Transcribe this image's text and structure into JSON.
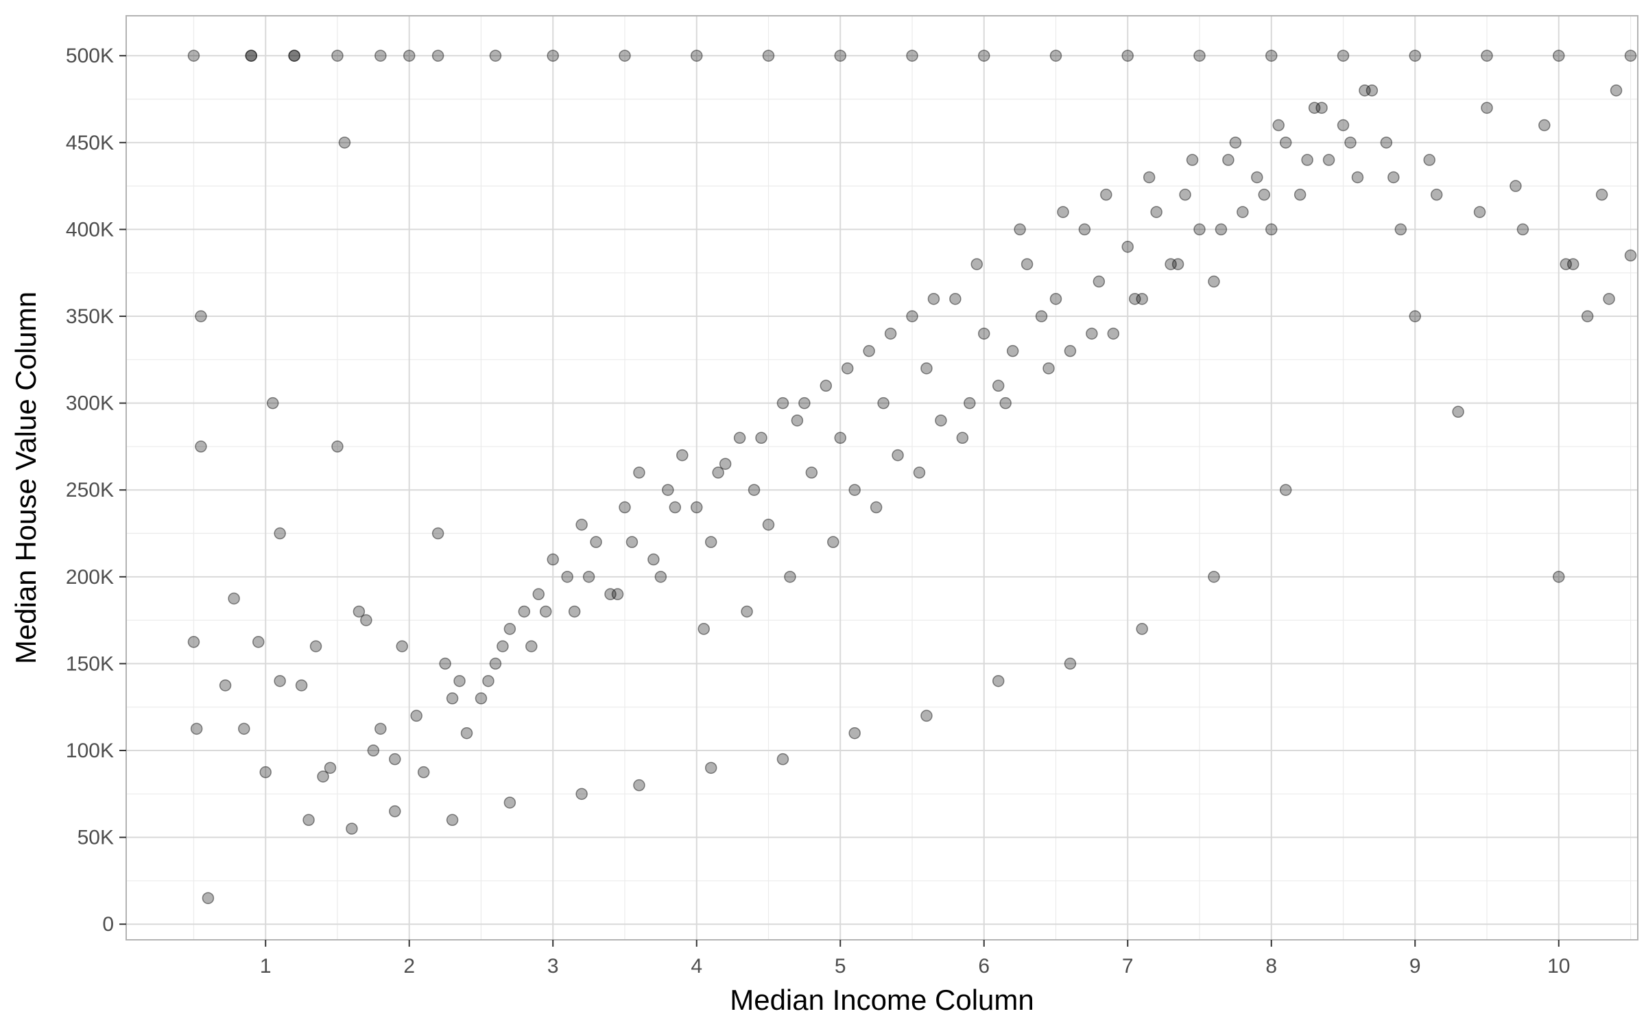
{
  "chart_data": {
    "type": "scatter",
    "title": "",
    "xlabel": "Median Income Column",
    "ylabel": "Median House Value Column",
    "xlim": [
      0.03,
      10.55
    ],
    "ylim": [
      -9000,
      523000
    ],
    "x_ticks": [
      1,
      2,
      3,
      4,
      5,
      6,
      7,
      8,
      9,
      10
    ],
    "x_tick_labels": [
      "1",
      "2",
      "3",
      "4",
      "5",
      "6",
      "7",
      "8",
      "9",
      "10"
    ],
    "y_ticks": [
      0,
      50000,
      100000,
      150000,
      200000,
      250000,
      300000,
      350000,
      400000,
      450000,
      500000
    ],
    "y_tick_labels": [
      "0",
      "50K",
      "100K",
      "150K",
      "200K",
      "250K",
      "300K",
      "350K",
      "400K",
      "450K",
      "500K"
    ],
    "grid": true,
    "legend": "none",
    "point_color": "#000000",
    "point_opacity": 0.3,
    "series": [
      {
        "x": [
          0.5,
          0.52,
          0.55,
          0.55,
          0.6,
          0.72,
          0.78,
          0.85,
          0.9,
          0.95,
          1.0,
          1.05,
          1.1,
          1.2,
          1.25,
          1.4,
          1.5,
          1.55,
          1.7,
          1.8,
          1.9,
          2.0,
          2.1,
          2.2,
          2.3,
          2.4,
          2.5,
          2.6,
          2.7,
          2.8,
          2.9,
          3.0,
          3.1,
          3.2,
          3.3,
          3.4,
          3.5,
          3.6,
          3.7,
          3.8,
          3.9,
          4.0,
          4.1,
          4.2,
          4.3,
          4.4,
          4.5,
          4.6,
          4.7,
          4.8,
          4.9,
          5.0,
          5.1,
          5.2,
          5.3,
          5.4,
          5.5,
          5.6,
          5.7,
          5.8,
          5.9,
          6.0,
          6.1,
          6.2,
          6.3,
          6.4,
          6.5,
          6.6,
          6.7,
          6.8,
          6.9,
          7.0,
          7.1,
          7.2,
          7.3,
          7.4,
          7.5,
          7.6,
          7.7,
          7.8,
          7.9,
          8.0,
          8.1,
          8.2,
          8.3,
          8.4,
          8.5,
          8.6,
          8.7,
          8.8,
          8.9,
          9.0,
          9.1,
          9.3,
          9.5,
          9.7,
          9.9,
          10.0,
          10.1,
          10.2,
          10.3,
          10.4,
          10.5,
          0.5,
          0.9,
          1.2,
          1.5,
          1.8,
          2.2,
          2.6,
          3.0,
          3.5,
          4.0,
          4.5,
          5.0,
          5.5,
          6.0,
          6.5,
          7.0,
          7.5,
          8.0,
          8.5,
          9.0,
          9.5,
          10.0,
          10.5,
          1.3,
          1.6,
          1.9,
          2.3,
          2.7,
          3.2,
          3.6,
          4.1,
          4.6,
          5.1,
          5.6,
          6.1,
          6.6,
          7.1,
          7.6,
          8.1,
          1.45,
          1.75,
          2.05,
          2.35,
          2.65,
          2.95,
          3.25,
          3.55,
          3.85,
          4.15,
          4.45,
          4.75,
          5.05,
          5.35,
          5.65,
          5.95,
          6.25,
          6.55,
          6.85,
          7.15,
          7.45,
          7.75,
          8.05,
          8.35,
          8.65,
          1.1,
          1.35,
          1.65,
          1.95,
          2.25,
          2.55,
          2.85,
          3.15,
          3.45,
          3.75,
          4.05,
          4.35,
          4.65,
          4.95,
          5.25,
          5.55,
          5.85,
          6.15,
          6.45,
          6.75,
          7.05,
          7.35,
          7.65,
          7.95,
          8.25,
          8.55,
          8.85,
          9.15,
          9.45,
          9.75,
          10.05,
          10.35
        ],
        "y": [
          162500,
          112500,
          275000,
          350000,
          15000,
          137500,
          187500,
          112500,
          500000,
          162500,
          87500,
          300000,
          225000,
          500000,
          137500,
          85000,
          275000,
          450000,
          175000,
          112500,
          95000,
          500000,
          87500,
          225000,
          130000,
          110000,
          130000,
          150000,
          170000,
          180000,
          190000,
          210000,
          200000,
          230000,
          220000,
          190000,
          240000,
          260000,
          210000,
          250000,
          270000,
          240000,
          220000,
          265000,
          280000,
          250000,
          230000,
          300000,
          290000,
          260000,
          310000,
          280000,
          250000,
          330000,
          300000,
          270000,
          350000,
          320000,
          290000,
          360000,
          300000,
          340000,
          310000,
          330000,
          380000,
          350000,
          360000,
          330000,
          400000,
          370000,
          340000,
          390000,
          360000,
          410000,
          380000,
          420000,
          400000,
          370000,
          440000,
          410000,
          430000,
          400000,
          450000,
          420000,
          470000,
          440000,
          460000,
          430000,
          480000,
          450000,
          400000,
          350000,
          440000,
          295000,
          470000,
          425000,
          460000,
          200000,
          380000,
          350000,
          420000,
          480000,
          385000,
          500000,
          500000,
          500000,
          500000,
          500000,
          500000,
          500000,
          500000,
          500000,
          500000,
          500000,
          500000,
          500000,
          500000,
          500000,
          500000,
          500000,
          500000,
          500000,
          500000,
          500000,
          500000,
          500000,
          60000,
          55000,
          65000,
          60000,
          70000,
          75000,
          80000,
          90000,
          95000,
          110000,
          120000,
          140000,
          150000,
          170000,
          200000,
          250000,
          90000,
          100000,
          120000,
          140000,
          160000,
          180000,
          200000,
          220000,
          240000,
          260000,
          280000,
          300000,
          320000,
          340000,
          360000,
          380000,
          400000,
          410000,
          420000,
          430000,
          440000,
          450000,
          460000,
          470000,
          480000,
          140000,
          160000,
          180000,
          160000,
          150000,
          140000,
          160000,
          180000,
          190000,
          200000,
          170000,
          180000,
          200000,
          220000,
          240000,
          260000,
          280000,
          300000,
          320000,
          340000,
          360000,
          380000,
          400000,
          420000,
          440000,
          450000,
          430000,
          420000,
          410000,
          400000,
          380000,
          360000
        ]
      }
    ]
  }
}
